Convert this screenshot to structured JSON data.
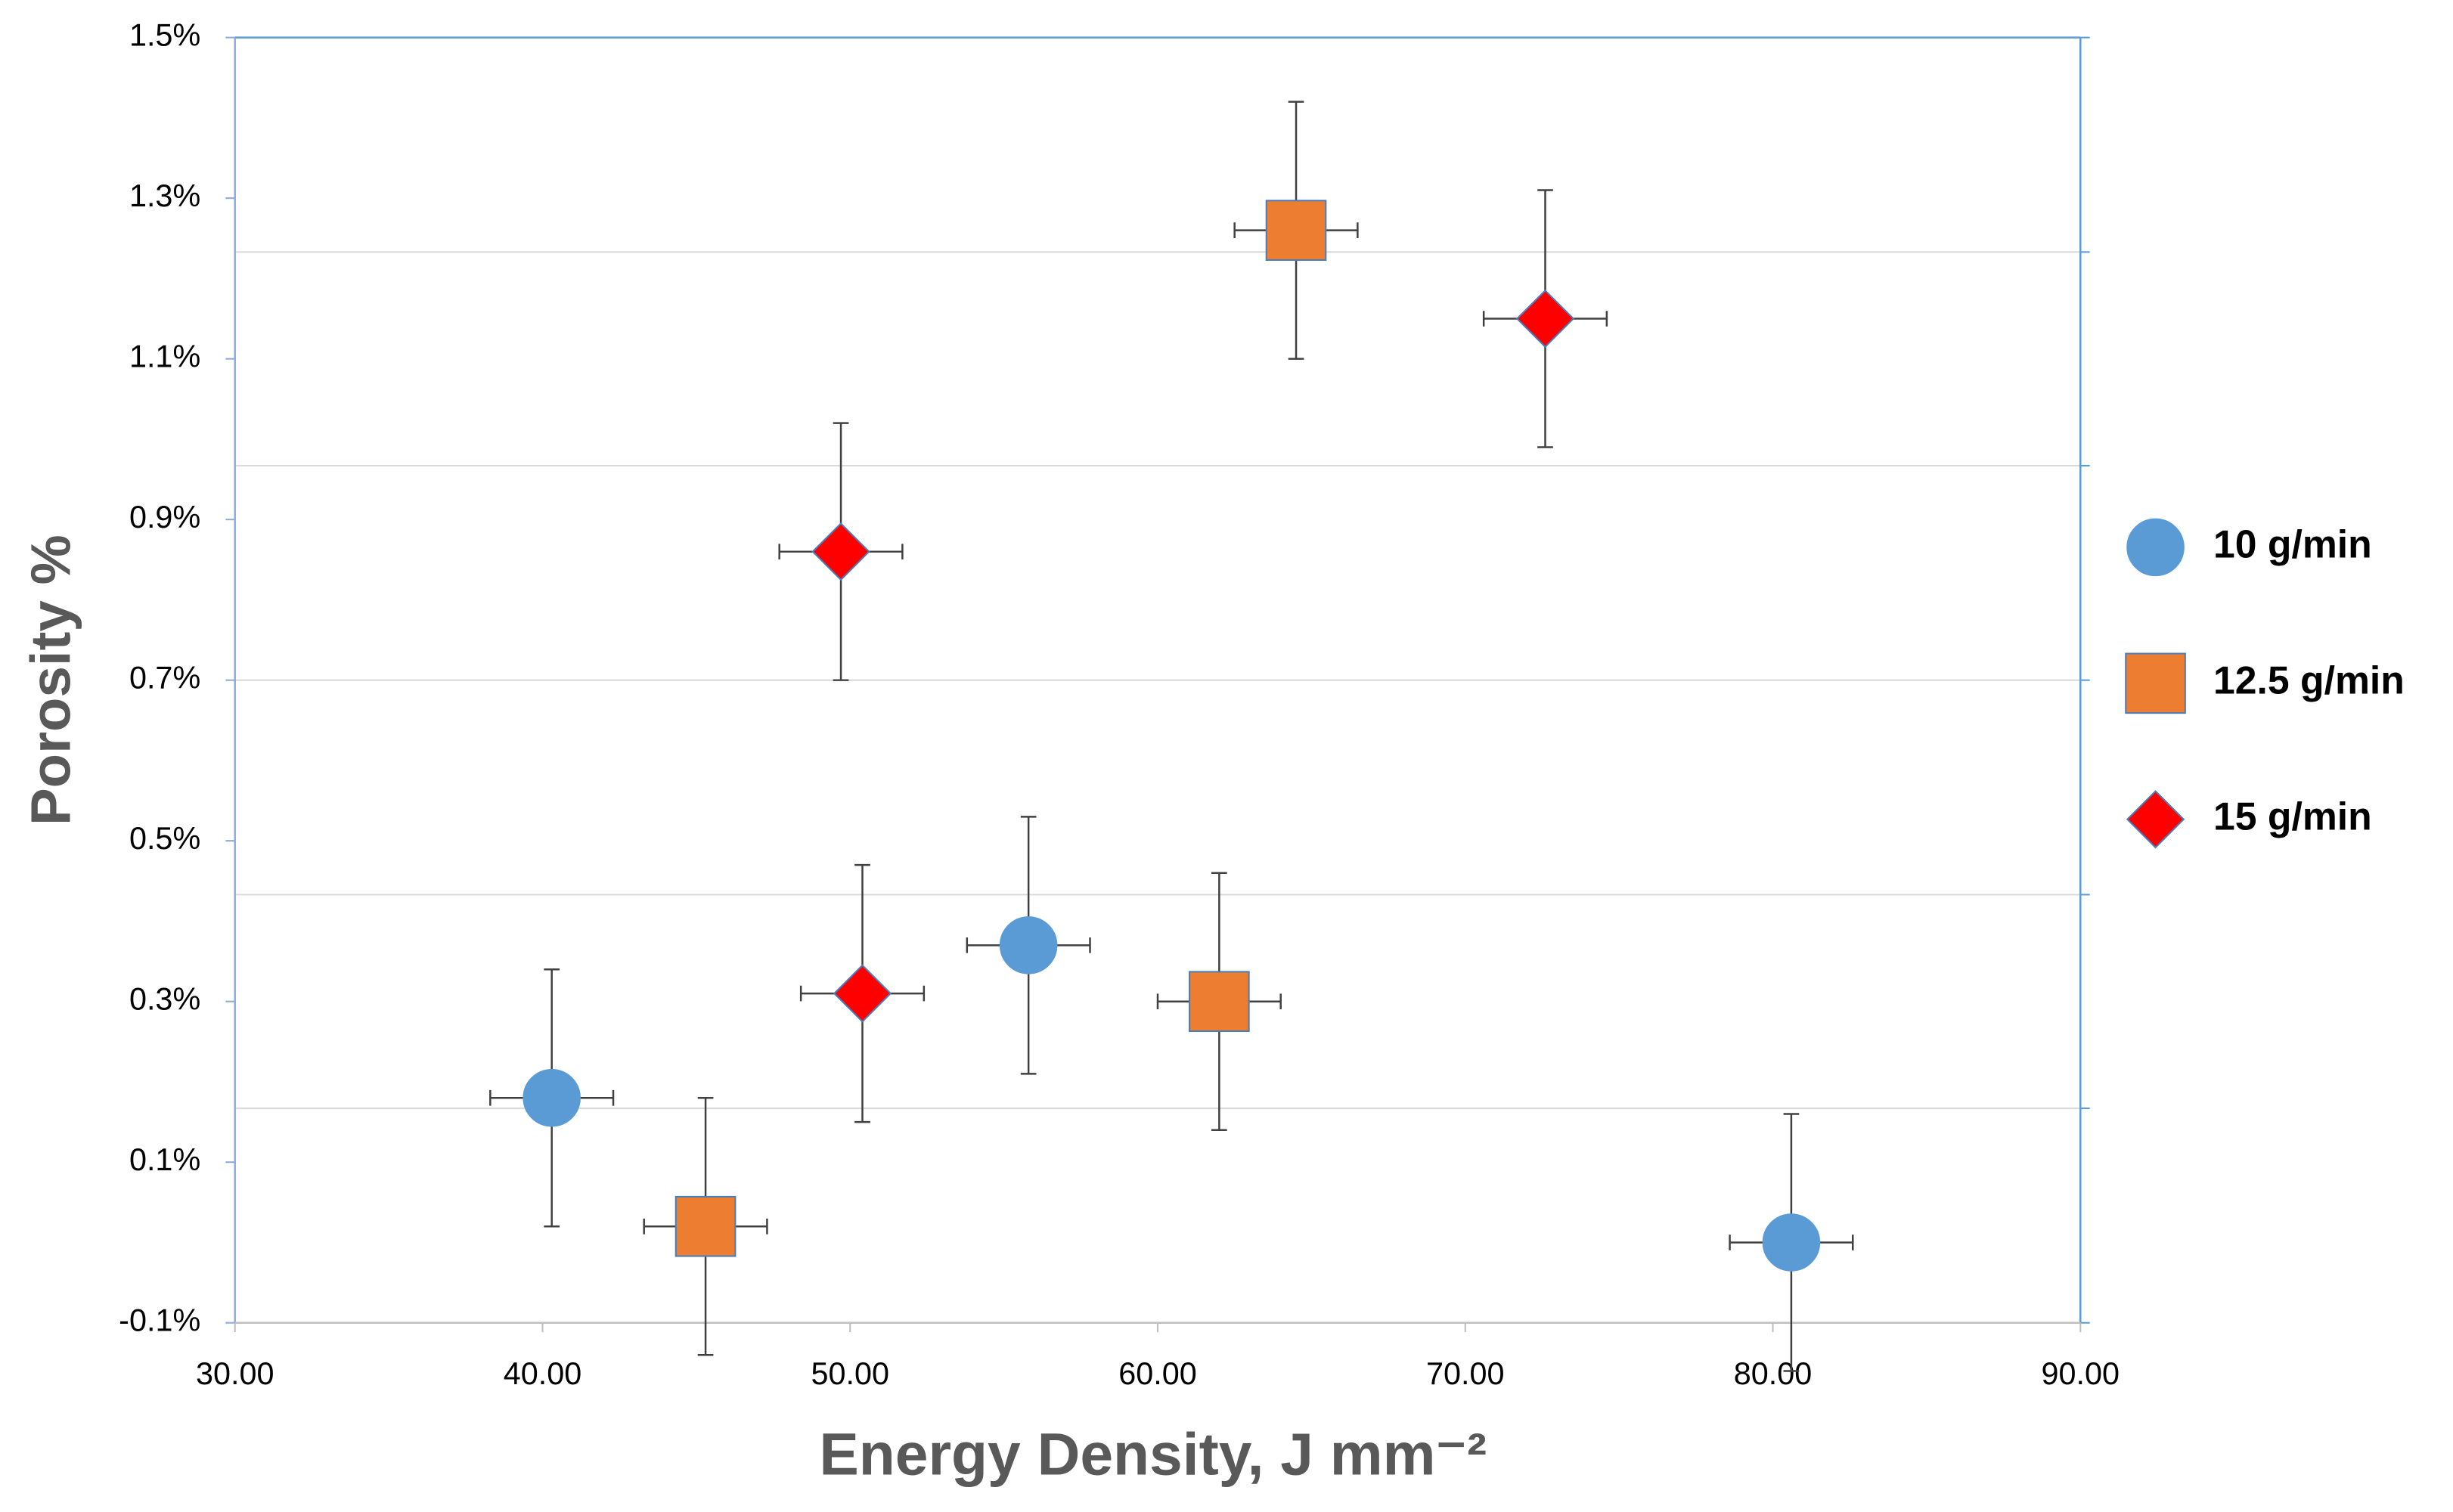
{
  "chart_data": {
    "type": "scatter",
    "xlabel": "Energy Density, J mm⁻²",
    "ylabel": "Porosity %",
    "xlim": [
      30,
      90
    ],
    "ylim": [
      -0.1,
      1.5
    ],
    "xticks": [
      {
        "value": 30,
        "label": "30.00"
      },
      {
        "value": 40,
        "label": "40.00"
      },
      {
        "value": 50,
        "label": "50.00"
      },
      {
        "value": 60,
        "label": "60.00"
      },
      {
        "value": 70,
        "label": "70.00"
      },
      {
        "value": 80,
        "label": "80.00"
      },
      {
        "value": 90,
        "label": "90.00"
      }
    ],
    "yticks": [
      {
        "value": -0.1,
        "label": "-0.1%"
      },
      {
        "value": 0.1,
        "label": "0.1%"
      },
      {
        "value": 0.3,
        "label": "0.3%"
      },
      {
        "value": 0.5,
        "label": "0.5%"
      },
      {
        "value": 0.7,
        "label": "0.7%"
      },
      {
        "value": 0.9,
        "label": "0.9%"
      },
      {
        "value": 1.1,
        "label": "1.1%"
      },
      {
        "value": 1.3,
        "label": "1.3%"
      },
      {
        "value": 1.5,
        "label": "1.5%"
      }
    ],
    "y2lim": [
      -0.1,
      1.5
    ],
    "y2ticks": [
      -0.1,
      0.167,
      0.433,
      0.7,
      0.967,
      1.233,
      1.5
    ],
    "grid": true,
    "legend": "right",
    "series": [
      {
        "name": "10 g/min",
        "color": "#5b9bd5",
        "marker": "circle",
        "x": [
          40.3,
          55.8,
          80.6
        ],
        "values": [
          0.18,
          0.37,
          0.0
        ],
        "xerr": [
          2.0,
          2.0,
          2.0
        ],
        "yerr": [
          0.16,
          0.16,
          0.16
        ]
      },
      {
        "name": "12.5 g/min",
        "color": "#ed7d31",
        "marker": "square",
        "x": [
          45.3,
          64.5,
          62.0
        ],
        "values": [
          0.02,
          1.26,
          0.3
        ],
        "xerr": [
          2.0,
          2.0,
          2.0
        ],
        "yerr": [
          0.16,
          0.16,
          0.16
        ]
      },
      {
        "name": "15 g/min",
        "color": "#ff0000",
        "marker": "diamond",
        "x": [
          49.7,
          50.4,
          72.6
        ],
        "values": [
          0.86,
          0.31,
          1.15
        ],
        "xerr": [
          2.0,
          2.0,
          2.0
        ],
        "yerr": [
          0.16,
          0.16,
          0.16
        ]
      }
    ]
  }
}
